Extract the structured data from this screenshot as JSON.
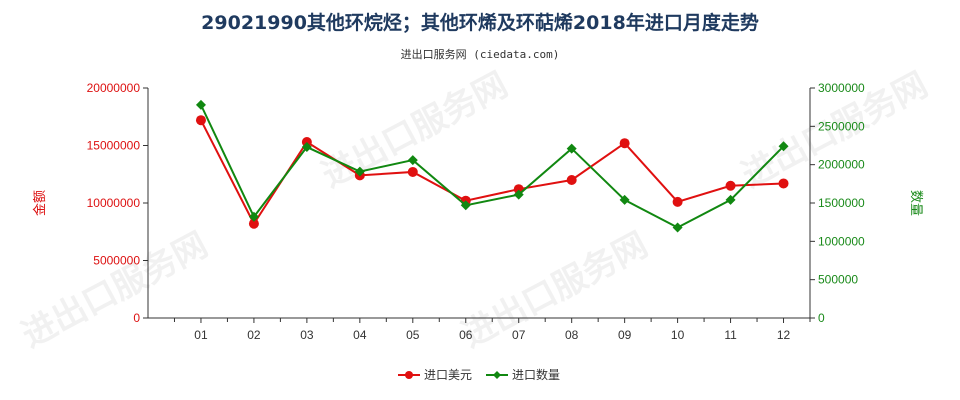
{
  "title": "29021990其他环烷烃；其他环烯及环萜烯2018年进口月度走势",
  "subtitle": "进出口服务网 (ciedata.com)",
  "watermark": "进出口服务网",
  "colors": {
    "left_axis": "#dd1111",
    "right_axis": "#1a8a1a",
    "series_amount": "#e01010",
    "series_qty": "#118811"
  },
  "chart_data": {
    "type": "line",
    "categories": [
      "01",
      "02",
      "03",
      "04",
      "05",
      "06",
      "07",
      "08",
      "09",
      "10",
      "11",
      "12"
    ],
    "y_left": {
      "label": "金额",
      "range": [
        0,
        20000000
      ],
      "ticks": [
        "0",
        "5000000",
        "10000000",
        "15000000",
        "20000000"
      ]
    },
    "y_right": {
      "label": "数量",
      "range": [
        0,
        3000000
      ],
      "ticks": [
        "0",
        "500000",
        "1000000",
        "1500000",
        "2000000",
        "2500000",
        "3000000"
      ]
    },
    "series": [
      {
        "name": "进口美元",
        "axis": "left",
        "values": [
          17200000,
          8200000,
          15300000,
          12400000,
          12700000,
          10200000,
          11200000,
          12000000,
          15200000,
          10100000,
          11500000,
          11700000
        ]
      },
      {
        "name": "进口数量",
        "axis": "right",
        "values": [
          2780000,
          1320000,
          2230000,
          1910000,
          2060000,
          1470000,
          1610000,
          2210000,
          1540000,
          1180000,
          1540000,
          2240000
        ]
      }
    ],
    "legend_position": "bottom-center",
    "grid": false
  }
}
